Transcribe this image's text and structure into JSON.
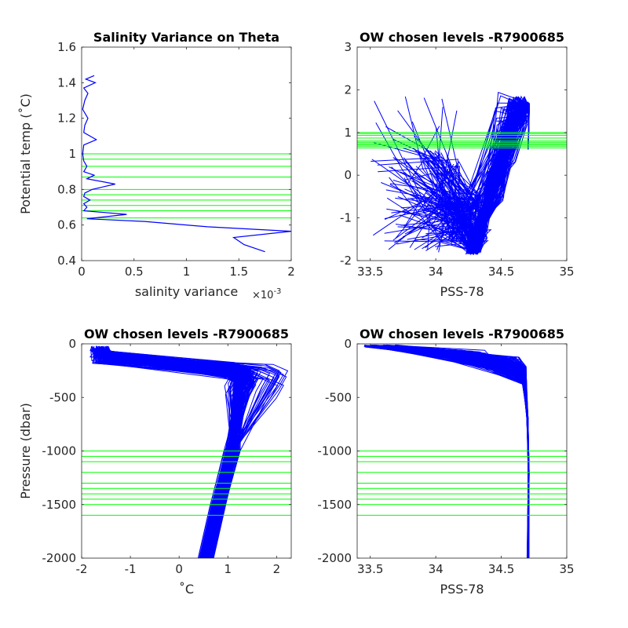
{
  "colors": {
    "profile": "#0000ff",
    "level": "#00ff00",
    "axis": "#262626"
  },
  "chart_data": [
    {
      "id": "p1",
      "type": "line",
      "title": "Salinity Variance on Theta",
      "xlabel": "salinity variance",
      "x_exponent": "×10",
      "x_exponent_power": "-3",
      "ylabel": "Potential temp (˚C)",
      "xlim": [
        0,
        2
      ],
      "ylim": [
        0.4,
        1.6
      ],
      "xticks": [
        0,
        0.5,
        1,
        1.5,
        2
      ],
      "xticklabels": [
        "0",
        "0.5",
        "1",
        "1.5",
        "2"
      ],
      "yticks": [
        0.4,
        0.6,
        0.8,
        1,
        1.2,
        1.4,
        1.6
      ],
      "yticklabels": [
        "0.4",
        "0.6",
        "0.8",
        "1",
        "1.2",
        "1.4",
        "1.6"
      ],
      "variance_curve": [
        [
          1.75,
          0.45
        ],
        [
          1.55,
          0.49
        ],
        [
          1.45,
          0.53
        ],
        [
          2.0,
          0.565
        ],
        [
          1.2,
          0.59
        ],
        [
          0.6,
          0.62
        ],
        [
          0.05,
          0.635
        ],
        [
          0.43,
          0.66
        ],
        [
          0.02,
          0.68
        ],
        [
          0.05,
          0.7
        ],
        [
          0.02,
          0.72
        ],
        [
          0.08,
          0.74
        ],
        [
          0.02,
          0.76
        ],
        [
          0.03,
          0.78
        ],
        [
          0.1,
          0.8
        ],
        [
          0.32,
          0.83
        ],
        [
          0.05,
          0.86
        ],
        [
          0.12,
          0.88
        ],
        [
          0.02,
          0.9
        ],
        [
          0.05,
          0.93
        ],
        [
          0.02,
          0.96
        ],
        [
          0.01,
          1.0
        ],
        [
          0.02,
          1.05
        ],
        [
          0.14,
          1.08
        ],
        [
          0.02,
          1.12
        ],
        [
          0.03,
          1.16
        ],
        [
          0.06,
          1.2
        ],
        [
          0.01,
          1.25
        ],
        [
          0.03,
          1.3
        ],
        [
          0.06,
          1.34
        ],
        [
          0.02,
          1.37
        ],
        [
          0.13,
          1.4
        ],
        [
          0.04,
          1.42
        ],
        [
          0.12,
          1.44
        ]
      ],
      "chosen_levels": [
        0.64,
        0.68,
        0.71,
        0.74,
        0.77,
        0.8,
        0.87,
        0.93,
        0.97,
        1.0
      ]
    },
    {
      "id": "p2",
      "type": "line",
      "title": "OW chosen levels -R7900685",
      "xlabel": "PSS-78",
      "ylabel": "",
      "xlim": [
        33.4,
        35
      ],
      "ylim": [
        -2,
        3
      ],
      "xticks": [
        33.5,
        34,
        34.5,
        35
      ],
      "xticklabels": [
        "33.5",
        "34",
        "34.5",
        "35"
      ],
      "yticks": [
        -2,
        -1,
        0,
        1,
        2,
        3
      ],
      "yticklabels": [
        "-2",
        "-1",
        "0",
        "1",
        "2",
        "3"
      ],
      "profile_count": 150,
      "chosen_levels": [
        0.64,
        0.68,
        0.71,
        0.74,
        0.77,
        0.8,
        0.87,
        0.93,
        0.97,
        1.0
      ]
    },
    {
      "id": "p3",
      "type": "line",
      "title": "OW chosen levels -R7900685",
      "xlabel": "˚C",
      "ylabel": "Pressure (dbar)",
      "xlim": [
        -2,
        2.3
      ],
      "ylim": [
        -2000,
        0
      ],
      "xticks": [
        -2,
        -1,
        0,
        1,
        2
      ],
      "xticklabels": [
        "-2",
        "-1",
        "0",
        "1",
        "2"
      ],
      "yticks": [
        -2000,
        -1500,
        -1000,
        -500,
        0
      ],
      "yticklabels": [
        "-2000",
        "-1500",
        "-1000",
        "-500",
        "0"
      ],
      "profile_count": 150,
      "chosen_levels": [
        -1000,
        -1050,
        -1100,
        -1200,
        -1300,
        -1350,
        -1400,
        -1450,
        -1500,
        -1600
      ]
    },
    {
      "id": "p4",
      "type": "line",
      "title": "OW chosen levels -R7900685",
      "xlabel": "PSS-78",
      "ylabel": "",
      "xlim": [
        33.4,
        35
      ],
      "ylim": [
        -2000,
        0
      ],
      "xticks": [
        33.5,
        34,
        34.5,
        35
      ],
      "xticklabels": [
        "33.5",
        "34",
        "34.5",
        "35"
      ],
      "yticks": [
        -2000,
        -1500,
        -1000,
        -500,
        0
      ],
      "yticklabels": [
        "-2000",
        "-1500",
        "-1000",
        "-500",
        "0"
      ],
      "profile_count": 150,
      "chosen_levels": [
        -1000,
        -1050,
        -1100,
        -1200,
        -1300,
        -1350,
        -1400,
        -1450,
        -1500,
        -1600
      ]
    }
  ]
}
